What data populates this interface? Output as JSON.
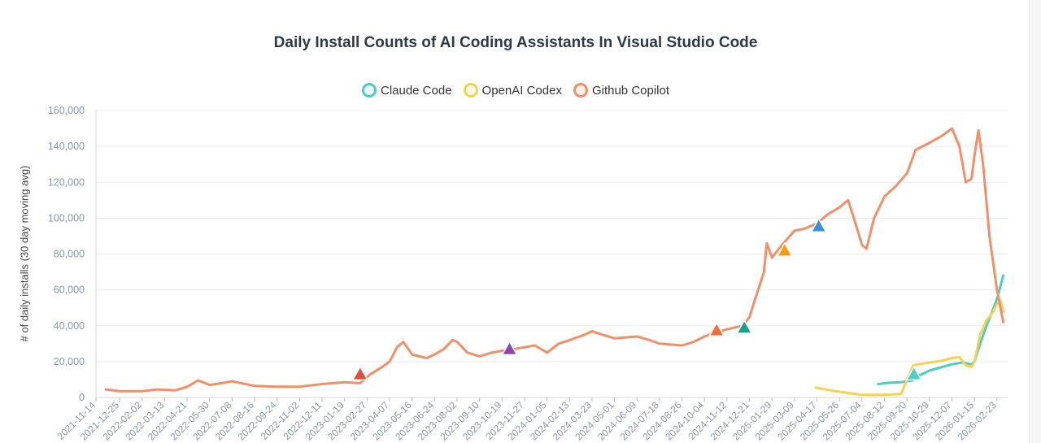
{
  "chart_data": {
    "type": "line",
    "title": "Daily Install Counts of AI Coding Assistants In Visual Studio Code",
    "xlabel": "",
    "ylabel": "# of daily installs (30 day moving avg)",
    "ylim": [
      0,
      160000
    ],
    "yticks": [
      0,
      20000,
      40000,
      60000,
      80000,
      100000,
      120000,
      140000,
      160000
    ],
    "ytick_labels": [
      "0",
      "20,000",
      "40,000",
      "60,000",
      "80,000",
      "100,000",
      "120,000",
      "140,000",
      "160,000"
    ],
    "xlim": [
      "2021-11-14",
      "2026-03-15"
    ],
    "xticks": [
      "2021-11-14",
      "2021-12-25",
      "2022-02-02",
      "2022-03-13",
      "2022-04-21",
      "2022-05-30",
      "2022-07-08",
      "2022-08-16",
      "2022-09-24",
      "2022-11-02",
      "2022-12-11",
      "2023-01-19",
      "2023-02-27",
      "2023-04-07",
      "2023-05-16",
      "2023-06-24",
      "2023-08-02",
      "2023-09-10",
      "2023-10-19",
      "2023-11-27",
      "2024-01-05",
      "2024-02-13",
      "2024-03-23",
      "2024-05-01",
      "2024-06-09",
      "2024-07-18",
      "2024-08-26",
      "2024-10-04",
      "2024-11-12",
      "2024-12-21",
      "2025-01-29",
      "2025-03-09",
      "2025-04-17",
      "2025-05-26",
      "2025-07-04",
      "2025-08-12",
      "2025-09-20",
      "2025-10-29",
      "2025-12-07",
      "2026-01-15",
      "2026-02-23"
    ],
    "xtick_labels": [
      "2021-11-14",
      "2021-12-25",
      "2022-02-02",
      "2022-03-13",
      "2022-04-21",
      "2022-05-30",
      "2022-07-08",
      "2022-08-16",
      "2022-09-24",
      "2022-11-02",
      "2022-12-11",
      "2023-01-19",
      "2023-02-27",
      "2023-04-07",
      "2023-05-16",
      "2023-06-24",
      "2023-08-02",
      "2023-09-10",
      "2023-10-19",
      "2023-11-27",
      "2024-01-05",
      "2024-02-13",
      "2024-03-23",
      "2024-05-01",
      "2024-06-09",
      "2024-07-18",
      "2024-08-26",
      "2024-10-04",
      "2024-11-12",
      "2024-12-21",
      "2025-01-29",
      "2025-03-09",
      "2025-04-17",
      "2025-05-26",
      "2025-07-04",
      "2025-08-12",
      "2025-09-20",
      "2025-10-29",
      "2025-12-07",
      "2026-01-15",
      "2026-02-23"
    ],
    "legend": "top-center",
    "series": [
      {
        "name": "Claude Code",
        "color": "#4ecdc4",
        "points": [
          [
            "2025-08-01",
            7500
          ],
          [
            "2025-08-20",
            8200
          ],
          [
            "2025-09-10",
            8500
          ],
          [
            "2025-09-30",
            9500
          ],
          [
            "2025-10-10",
            12000
          ],
          [
            "2025-10-29",
            15000
          ],
          [
            "2025-11-20",
            17000
          ],
          [
            "2025-12-07",
            18500
          ],
          [
            "2025-12-25",
            19500
          ],
          [
            "2026-01-10",
            18500
          ],
          [
            "2026-01-15",
            20000
          ],
          [
            "2026-01-25",
            30000
          ],
          [
            "2026-02-05",
            40000
          ],
          [
            "2026-02-15",
            48000
          ],
          [
            "2026-02-23",
            55000
          ],
          [
            "2026-03-01",
            62000
          ],
          [
            "2026-03-06",
            68000
          ]
        ]
      },
      {
        "name": "OpenAI Codex",
        "color": "#f7d154",
        "points": [
          [
            "2025-04-15",
            5500
          ],
          [
            "2025-05-10",
            4000
          ],
          [
            "2025-06-10",
            2500
          ],
          [
            "2025-07-04",
            1500
          ],
          [
            "2025-08-12",
            1500
          ],
          [
            "2025-09-10",
            2000
          ],
          [
            "2025-09-20",
            10000
          ],
          [
            "2025-10-01",
            18000
          ],
          [
            "2025-10-10",
            18500
          ],
          [
            "2025-10-29",
            19500
          ],
          [
            "2025-11-20",
            20500
          ],
          [
            "2025-12-07",
            22000
          ],
          [
            "2025-12-20",
            22500
          ],
          [
            "2025-12-31",
            18000
          ],
          [
            "2026-01-10",
            17000
          ],
          [
            "2026-01-15",
            20000
          ],
          [
            "2026-01-25",
            35000
          ],
          [
            "2026-02-05",
            43000
          ],
          [
            "2026-02-15",
            47000
          ],
          [
            "2026-02-23",
            52000
          ],
          [
            "2026-03-01",
            54000
          ],
          [
            "2026-03-06",
            48000
          ]
        ]
      },
      {
        "name": "Github Copilot",
        "color": "#f0906a",
        "points": [
          [
            "2021-12-01",
            4500
          ],
          [
            "2021-12-25",
            3500
          ],
          [
            "2022-02-02",
            3500
          ],
          [
            "2022-03-01",
            4500
          ],
          [
            "2022-04-01",
            4000
          ],
          [
            "2022-04-21",
            6000
          ],
          [
            "2022-05-10",
            9500
          ],
          [
            "2022-05-30",
            7000
          ],
          [
            "2022-06-20",
            8000
          ],
          [
            "2022-07-08",
            9000
          ],
          [
            "2022-08-16",
            6500
          ],
          [
            "2022-09-24",
            6000
          ],
          [
            "2022-11-02",
            6000
          ],
          [
            "2022-12-11",
            7500
          ],
          [
            "2023-01-19",
            8500
          ],
          [
            "2023-02-15",
            8000
          ],
          [
            "2023-03-05",
            13000
          ],
          [
            "2023-03-25",
            17000
          ],
          [
            "2023-04-07",
            20000
          ],
          [
            "2023-04-20",
            28000
          ],
          [
            "2023-05-01",
            31000
          ],
          [
            "2023-05-16",
            24000
          ],
          [
            "2023-06-10",
            22000
          ],
          [
            "2023-06-24",
            24000
          ],
          [
            "2023-07-10",
            27000
          ],
          [
            "2023-07-25",
            32000
          ],
          [
            "2023-08-02",
            31000
          ],
          [
            "2023-08-20",
            25000
          ],
          [
            "2023-09-10",
            23000
          ],
          [
            "2023-10-01",
            25000
          ],
          [
            "2023-10-19",
            26000
          ],
          [
            "2023-11-10",
            27000
          ],
          [
            "2023-11-27",
            28000
          ],
          [
            "2023-12-15",
            29000
          ],
          [
            "2024-01-05",
            25000
          ],
          [
            "2024-01-25",
            30000
          ],
          [
            "2024-02-13",
            32000
          ],
          [
            "2024-03-10",
            35000
          ],
          [
            "2024-03-23",
            37000
          ],
          [
            "2024-04-10",
            35000
          ],
          [
            "2024-05-01",
            33000
          ],
          [
            "2024-06-09",
            34000
          ],
          [
            "2024-07-01",
            32000
          ],
          [
            "2024-07-18",
            30000
          ],
          [
            "2024-08-26",
            29000
          ],
          [
            "2024-09-15",
            31000
          ],
          [
            "2024-10-04",
            34000
          ],
          [
            "2024-10-20",
            36000
          ],
          [
            "2024-11-12",
            38000
          ],
          [
            "2024-11-25",
            39000
          ],
          [
            "2024-12-10",
            40000
          ],
          [
            "2024-12-21",
            45000
          ],
          [
            "2025-01-05",
            60000
          ],
          [
            "2025-01-15",
            70000
          ],
          [
            "2025-01-20",
            86000
          ],
          [
            "2025-01-29",
            78000
          ],
          [
            "2025-02-15",
            85000
          ],
          [
            "2025-03-09",
            93000
          ],
          [
            "2025-03-25",
            94000
          ],
          [
            "2025-04-17",
            97000
          ],
          [
            "2025-05-05",
            102000
          ],
          [
            "2025-05-26",
            106000
          ],
          [
            "2025-06-10",
            110000
          ],
          [
            "2025-06-20",
            100000
          ],
          [
            "2025-07-04",
            85000
          ],
          [
            "2025-07-12",
            83000
          ],
          [
            "2025-07-25",
            100000
          ],
          [
            "2025-08-12",
            112000
          ],
          [
            "2025-09-01",
            118000
          ],
          [
            "2025-09-20",
            125000
          ],
          [
            "2025-10-05",
            138000
          ],
          [
            "2025-10-29",
            142000
          ],
          [
            "2025-11-20",
            146000
          ],
          [
            "2025-12-07",
            150000
          ],
          [
            "2025-12-20",
            140000
          ],
          [
            "2025-12-31",
            120000
          ],
          [
            "2026-01-10",
            122000
          ],
          [
            "2026-01-15",
            135000
          ],
          [
            "2026-01-22",
            149000
          ],
          [
            "2026-01-30",
            130000
          ],
          [
            "2026-02-10",
            90000
          ],
          [
            "2026-02-23",
            60000
          ],
          [
            "2026-03-06",
            42000
          ]
        ]
      }
    ],
    "markers": [
      {
        "date": "2023-02-15",
        "value": 13000,
        "color": "#e04e39"
      },
      {
        "date": "2023-11-01",
        "value": 27000,
        "color": "#8e44ad"
      },
      {
        "date": "2024-10-25",
        "value": 37500,
        "color": "#f26f3a"
      },
      {
        "date": "2024-12-12",
        "value": 39000,
        "color": "#16a085"
      },
      {
        "date": "2025-02-20",
        "value": 82000,
        "color": "#f39c12"
      },
      {
        "date": "2025-04-20",
        "value": 95500,
        "color": "#3a8fd8"
      },
      {
        "date": "2025-10-02",
        "value": 13000,
        "color": "#4ecdc4"
      }
    ]
  }
}
